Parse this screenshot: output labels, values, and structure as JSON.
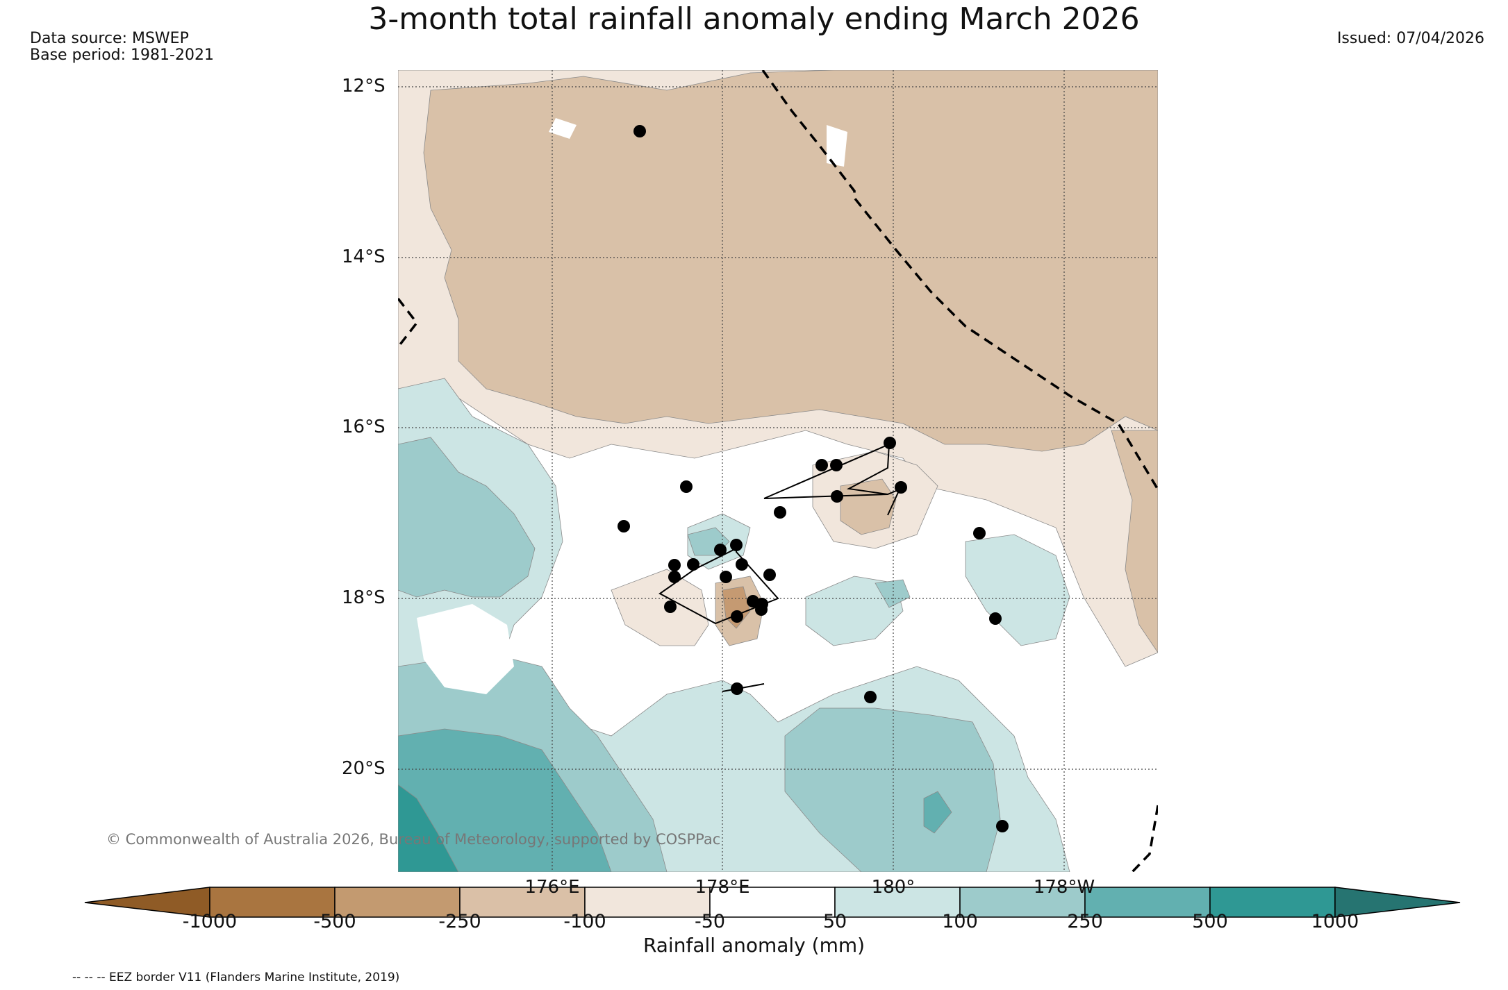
{
  "title": "3-month total rainfall anomaly ending March 2026",
  "data_source": "Data source: MSWEP",
  "base_period": "Base period: 1981-2021",
  "issued": "Issued: 07/04/2026",
  "map": {
    "lat_labels": [
      "12°S",
      "14°S",
      "16°S",
      "18°S",
      "20°S"
    ],
    "lon_labels": [
      "176°E",
      "178°E",
      "180°",
      "178°W"
    ],
    "copyright": "© Commonwealth of Australia 2026, Bureau of Meteorology, supported by COSPPac",
    "colors": {
      "dry_strong": "#d9c1a8",
      "dry_light": "#f1e6dc",
      "wet_light": "#cce5e4",
      "wet_mid": "#9dcbcb",
      "wet_strong": "#62b0b0",
      "wet_very_strong": "#2f9894",
      "dry_core": "#c59a72",
      "eez_border": "#000000",
      "station": "#000000"
    }
  },
  "colorbar": {
    "title": "Rainfall anomaly (mm)",
    "ticks": [
      "-1000",
      "-500",
      "-250",
      "-100",
      "-50",
      "50",
      "100",
      "250",
      "500",
      "1000"
    ],
    "colors": [
      "#8f5b26",
      "#a97540",
      "#c39a70",
      "#dac0a7",
      "#f1e6dc",
      "#ffffff",
      "#cce5e4",
      "#9dcbcb",
      "#62b0b0",
      "#2f9894",
      "#267471"
    ]
  },
  "footnote": "-- -- -- EEZ border V11 (Flanders Marine Institute, 2019)"
}
